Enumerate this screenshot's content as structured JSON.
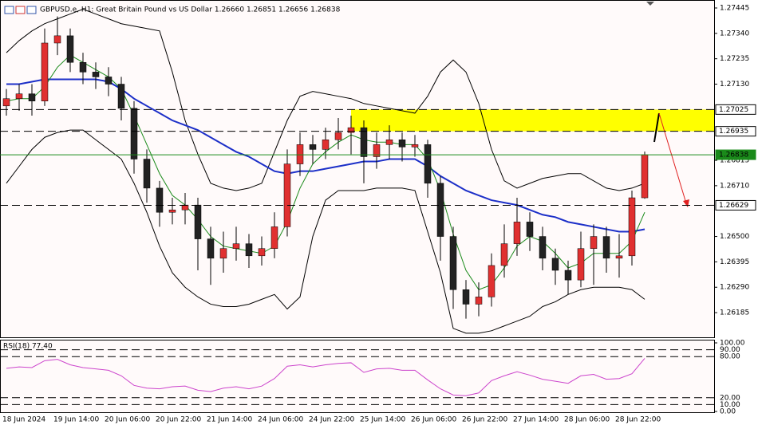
{
  "chart_data": [
    {
      "type": "candlestick",
      "title": "GBPUSD.e, H1:  Great Britain Pound vs US Dollar  1.26660 1.26851 1.26656 1.26838",
      "categories": [
        "18 Jun 2024",
        null,
        null,
        null,
        "19 Jun 14:00",
        null,
        null,
        null,
        "20 Jun 06:00",
        null,
        null,
        null,
        "20 Jun 22:00",
        null,
        null,
        null,
        "21 Jun 14:00",
        null,
        null,
        null,
        "24 Jun 06:00",
        null,
        null,
        null,
        "24 Jun 22:00",
        null,
        null,
        null,
        "25 Jun 14:00",
        null,
        null,
        null,
        "26 Jun 06:00",
        null,
        null,
        null,
        "26 Jun 22:00",
        null,
        null,
        null,
        "27 Jun 14:00",
        null,
        null,
        null,
        "28 Jun 06:00",
        null,
        null,
        null,
        "28 Jun 22:00",
        null,
        null
      ],
      "open": [
        1.2704,
        1.2707,
        1.2709,
        1.2706,
        1.273,
        1.2733,
        1.2722,
        1.2718,
        1.2716,
        1.2713,
        1.2703,
        1.2682,
        1.267,
        1.266,
        1.2661,
        1.2663,
        1.2649,
        1.2641,
        1.2645,
        1.2647,
        1.2642,
        1.2645,
        1.2654,
        1.268,
        1.2688,
        1.2686,
        1.269,
        1.2693,
        1.2695,
        1.2683,
        1.2688,
        1.269,
        1.2687,
        1.2688,
        1.2672,
        1.265,
        1.2628,
        1.2622,
        1.2625,
        1.2638,
        1.2647,
        1.2656,
        1.265,
        1.2641,
        1.2636,
        1.2632,
        1.2645,
        1.265,
        1.2641,
        1.2642,
        1.2666
      ],
      "high": [
        1.2711,
        1.2713,
        1.2713,
        1.2736,
        1.2741,
        1.2736,
        1.2726,
        1.2722,
        1.272,
        1.2716,
        1.2706,
        1.2686,
        1.2673,
        1.2666,
        1.2668,
        1.2666,
        1.2654,
        1.2652,
        1.2654,
        1.2651,
        1.265,
        1.266,
        1.2686,
        1.2693,
        1.2692,
        1.2695,
        1.2699,
        1.27,
        1.2698,
        1.2693,
        1.2696,
        1.2693,
        1.2692,
        1.269,
        1.2675,
        1.2654,
        1.2632,
        1.2631,
        1.2643,
        1.2655,
        1.2666,
        1.266,
        1.2654,
        1.2645,
        1.264,
        1.2652,
        1.2655,
        1.2654,
        1.2651,
        1.2669,
        1.26851
      ],
      "low": [
        1.27,
        1.2702,
        1.27,
        1.2704,
        1.2725,
        1.2718,
        1.2713,
        1.2711,
        1.2708,
        1.2698,
        1.2676,
        1.2664,
        1.2654,
        1.2655,
        1.2655,
        1.2636,
        1.263,
        1.2635,
        1.264,
        1.2637,
        1.2638,
        1.2641,
        1.265,
        1.2675,
        1.268,
        1.2682,
        1.2686,
        1.2684,
        1.2672,
        1.2678,
        1.2682,
        1.2681,
        1.2683,
        1.2666,
        1.264,
        1.262,
        1.2616,
        1.2617,
        1.2621,
        1.2633,
        1.2642,
        1.2644,
        1.2636,
        1.263,
        1.2626,
        1.2629,
        1.263,
        1.2635,
        1.2633,
        1.2638,
        1.26656
      ],
      "close": [
        1.2707,
        1.2709,
        1.2706,
        1.273,
        1.2733,
        1.2722,
        1.2718,
        1.2716,
        1.2713,
        1.2703,
        1.2682,
        1.267,
        1.266,
        1.2661,
        1.2663,
        1.2649,
        1.2641,
        1.2645,
        1.2647,
        1.2642,
        1.2645,
        1.2654,
        1.268,
        1.2688,
        1.2686,
        1.269,
        1.2693,
        1.2695,
        1.2683,
        1.2688,
        1.269,
        1.2687,
        1.2688,
        1.2672,
        1.265,
        1.2628,
        1.2622,
        1.2625,
        1.2638,
        1.2647,
        1.2656,
        1.265,
        1.2641,
        1.2636,
        1.2632,
        1.2645,
        1.265,
        1.2641,
        1.2642,
        1.2666,
        1.26838
      ],
      "lines": [
        {
          "color": "#000000",
          "values": [
            1.2726,
            1.2731,
            1.2735,
            1.2738,
            1.274,
            1.2742,
            1.2744,
            1.2742,
            1.274,
            1.2738,
            1.2737,
            1.2736,
            1.2735,
            1.2718,
            1.2698,
            1.2684,
            1.2672,
            1.267,
            1.2669,
            1.267,
            1.2672,
            1.2685,
            1.2698,
            1.2708,
            1.271,
            1.2709,
            1.2708,
            1.2707,
            1.2705,
            1.2704,
            1.2703,
            1.2702,
            1.2701,
            1.2708,
            1.2718,
            1.2723,
            1.2718,
            1.2705,
            1.2686,
            1.2673,
            1.267,
            1.2672,
            1.2674,
            1.2675,
            1.2676,
            1.2676,
            1.2673,
            1.267,
            1.2669,
            1.267,
            1.2672
          ]
        },
        {
          "color": "#000000",
          "values": [
            1.2672,
            1.2679,
            1.2686,
            1.2691,
            1.2693,
            1.2694,
            1.2694,
            1.269,
            1.2686,
            1.2682,
            1.2672,
            1.266,
            1.2646,
            1.2635,
            1.2629,
            1.2625,
            1.2622,
            1.2621,
            1.2621,
            1.2622,
            1.2624,
            1.2626,
            1.262,
            1.2625,
            1.265,
            1.2665,
            1.2669,
            1.2669,
            1.2669,
            1.267,
            1.267,
            1.267,
            1.2669,
            1.2652,
            1.2635,
            1.2612,
            1.261,
            1.261,
            1.2611,
            1.2613,
            1.2615,
            1.2617,
            1.2621,
            1.2623,
            1.2626,
            1.2628,
            1.2629,
            1.2629,
            1.2629,
            1.2628,
            1.2624
          ]
        },
        {
          "color": "#1c2fc8",
          "values": [
            1.2713,
            1.2713,
            1.2714,
            1.2715,
            1.2715,
            1.2715,
            1.2715,
            1.2715,
            1.2714,
            1.2711,
            1.2707,
            1.2704,
            1.2701,
            1.2698,
            1.2696,
            1.2694,
            1.2691,
            1.2688,
            1.2685,
            1.2683,
            1.268,
            1.2677,
            1.2676,
            1.2677,
            1.2677,
            1.2678,
            1.2679,
            1.268,
            1.2681,
            1.2681,
            1.2682,
            1.2682,
            1.2682,
            1.2679,
            1.2675,
            1.2672,
            1.2669,
            1.2667,
            1.2665,
            1.2664,
            1.2663,
            1.2661,
            1.2659,
            1.2658,
            1.2656,
            1.2655,
            1.2654,
            1.2653,
            1.2652,
            1.2652,
            1.2653
          ]
        },
        {
          "color": "#1a8a1a",
          "values": [
            1.2706,
            1.2707,
            1.2707,
            1.2712,
            1.272,
            1.2725,
            1.2722,
            1.2719,
            1.2716,
            1.2711,
            1.27,
            1.2688,
            1.2676,
            1.2667,
            1.2663,
            1.2657,
            1.265,
            1.2646,
            1.2645,
            1.2644,
            1.2643,
            1.2646,
            1.2656,
            1.267,
            1.268,
            1.2685,
            1.2689,
            1.2692,
            1.269,
            1.2689,
            1.2689,
            1.2688,
            1.2688,
            1.2682,
            1.2669,
            1.2651,
            1.2636,
            1.2628,
            1.263,
            1.2637,
            1.2646,
            1.265,
            1.2648,
            1.2643,
            1.2637,
            1.2639,
            1.2643,
            1.2643,
            1.2643,
            1.2648,
            1.266
          ]
        }
      ],
      "levels": [
        {
          "value": 1.27025,
          "color": "#000000",
          "dashed": true
        },
        {
          "value": 1.26935,
          "color": "#000000",
          "dashed": true
        },
        {
          "value": 1.26838,
          "color": "#1a8a1a",
          "dashed": false
        },
        {
          "value": 1.26629,
          "color": "#000000",
          "dashed": true
        }
      ],
      "zone": {
        "ylim": [
          1.26935,
          1.27025
        ],
        "from_index": 27,
        "color": "#ffff00"
      },
      "ylim": [
        1.26083,
        1.27478
      ],
      "yticks": [
        1.27445,
        {
          "value": 1.2734,
          "label": "1.27340"
        },
        1.27235,
        {
          "value": 1.2713,
          "label": "1.27130"
        },
        1.26815,
        {
          "value": 1.2671,
          "label": "1.26710"
        },
        {
          "value": 1.265,
          "label": "1.26500"
        },
        1.26395,
        {
          "value": 1.2629,
          "label": "1.26290"
        },
        1.26185
      ]
    },
    {
      "type": "line",
      "title": "RSI(18) 77.40",
      "color": "#cc44cc",
      "values": [
        63,
        65,
        64,
        74,
        76,
        68,
        64,
        62,
        60,
        52,
        38,
        34,
        33,
        36,
        37,
        31,
        29,
        34,
        36,
        33,
        37,
        48,
        66,
        68,
        65,
        68,
        70,
        71,
        57,
        62,
        63,
        60,
        60,
        46,
        33,
        24,
        23,
        27,
        45,
        52,
        58,
        53,
        47,
        44,
        41,
        52,
        54,
        47,
        48,
        55,
        77.4
      ],
      "ylim": [
        0,
        100
      ],
      "yticks": [
        {
          "value": 100,
          "label": "100.00"
        },
        {
          "value": 90,
          "label": "90.00"
        },
        {
          "value": 80,
          "label": "80.00"
        },
        {
          "value": 20,
          "label": "20.00"
        },
        {
          "value": 10,
          "label": "10.00"
        },
        {
          "value": 0,
          "label": "0.00"
        }
      ]
    }
  ]
}
